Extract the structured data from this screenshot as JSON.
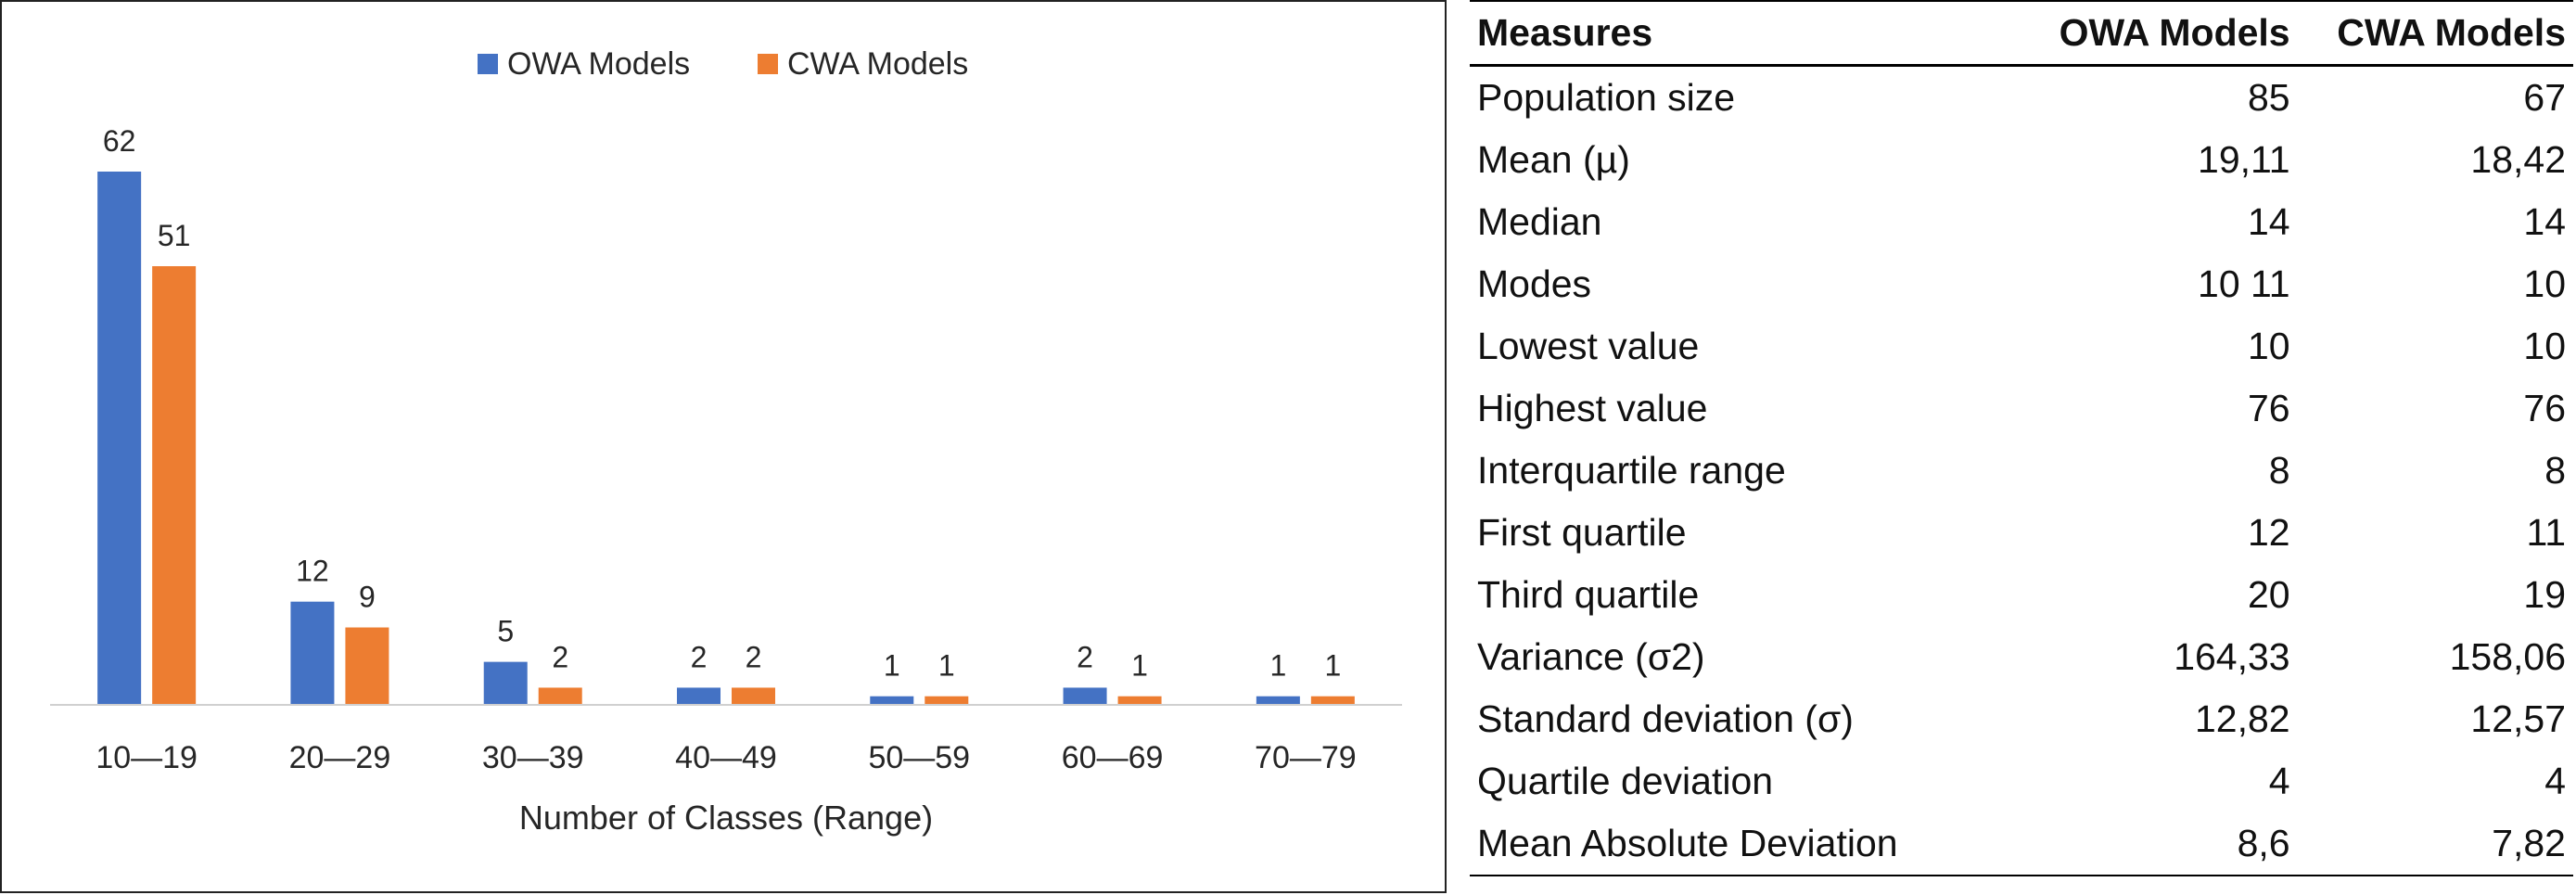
{
  "chart_data": {
    "type": "bar",
    "categories": [
      "10—19",
      "20—29",
      "30—39",
      "40—49",
      "50—59",
      "60—69",
      "70—79"
    ],
    "series": [
      {
        "name": "OWA Models",
        "values": [
          62,
          12,
          5,
          2,
          1,
          2,
          1
        ],
        "color": "#4472C4"
      },
      {
        "name": "CWA Models",
        "values": [
          51,
          9,
          2,
          2,
          1,
          1,
          1
        ],
        "color": "#ED7D31"
      }
    ],
    "title": "",
    "xlabel": "Number of Classes (Range)",
    "ylabel": "",
    "ylim": [
      0,
      62
    ],
    "grid": false,
    "legend_position": "top-center",
    "data_labels": true
  },
  "table": {
    "headers": [
      "Measures",
      "OWA Models",
      "CWA Models"
    ],
    "rows": [
      [
        "Population size",
        "85",
        "67"
      ],
      [
        "Mean (µ)",
        "19,11",
        "18,42"
      ],
      [
        "Median",
        "14",
        "14"
      ],
      [
        "Modes",
        "10 11",
        "10"
      ],
      [
        "Lowest value",
        "10",
        "10"
      ],
      [
        "Highest value",
        "76",
        "76"
      ],
      [
        "Interquartile range",
        "8",
        "8"
      ],
      [
        "First quartile",
        "12",
        "11"
      ],
      [
        "Third quartile",
        "20",
        "19"
      ],
      [
        "Variance (σ2)",
        "164,33",
        "158,06"
      ],
      [
        "Standard deviation (σ)",
        "12,82",
        "12,57"
      ],
      [
        "Quartile deviation",
        "4",
        "4"
      ],
      [
        "Mean Absolute Deviation",
        "8,6",
        "7,82"
      ]
    ]
  }
}
